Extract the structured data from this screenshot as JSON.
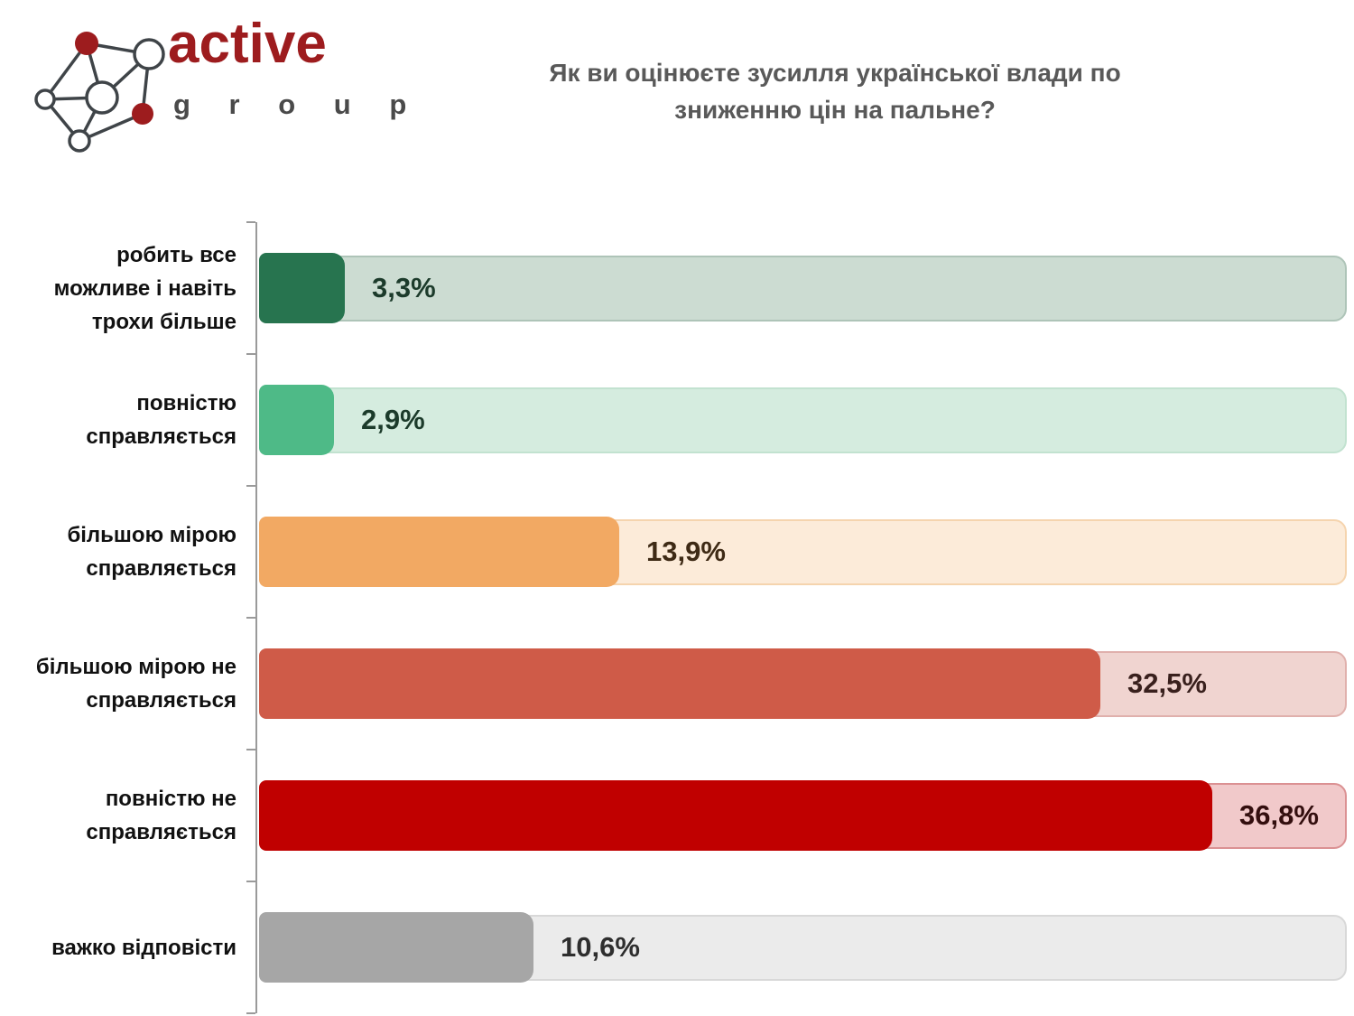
{
  "logo": {
    "word": "active",
    "sub": "g r o u p",
    "accent_color": "#9d1c1e",
    "sub_color": "#4a4a4a",
    "node_outline_color": "#3f4448"
  },
  "header": {
    "title": "Як ви оцінюєте зусилля української влади по\nзниженню цін на пальне?"
  },
  "chart_data": {
    "type": "bar",
    "orientation": "horizontal",
    "title": "Як ви оцінюєте зусилля української влади по зниженню цін на пальне?",
    "categories": [
      "робить все\nможливе і навіть\nтрохи більше",
      "повністю\nсправляється",
      "більшою мірою\nсправляється",
      "більшою мірою не\nсправляється",
      "повністю не\nсправляється",
      "важко відповісти"
    ],
    "values": [
      3.3,
      2.9,
      13.9,
      32.5,
      36.8,
      10.6
    ],
    "value_labels": [
      "3,3%",
      "2,9%",
      "13,9%",
      "32,5%",
      "36,8%",
      "10,6%"
    ],
    "bar_colors": [
      "#27744f",
      "#4eba87",
      "#f2a963",
      "#cf5b48",
      "#c00000",
      "#a6a6a6"
    ],
    "track_fill_colors": [
      "#ccdcd2",
      "#d5ecdf",
      "#fcebd9",
      "#f0d4d0",
      "#f1c9ca",
      "#ebebeb"
    ],
    "track_border_colors": [
      "#aec4b8",
      "#c2e2d0",
      "#f5d4ae",
      "#e0b0ac",
      "#db9193",
      "#d8d8d8"
    ],
    "value_label_colors": [
      "#1c3b2b",
      "#1c3b2b",
      "#3e2a15",
      "#39201d",
      "#330e0e",
      "#2e2e2e"
    ],
    "xlabel": "",
    "ylabel": "",
    "xlim": [
      0,
      42
    ],
    "grid": false,
    "legend": false,
    "axis_color": "#9a9a9a",
    "background": "#ffffff"
  }
}
